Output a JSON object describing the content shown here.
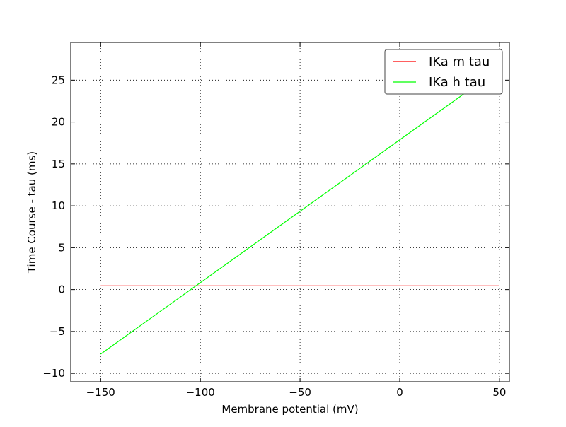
{
  "chart_data": {
    "type": "line",
    "title": "",
    "xlabel": "Membrane potential (mV)",
    "ylabel": "Time Course - tau (ms)",
    "xlim": [
      -165,
      55
    ],
    "ylim": [
      -11,
      29.5
    ],
    "xticks": [
      -150,
      -100,
      -50,
      0,
      50
    ],
    "xtick_labels": [
      "−150",
      "−100",
      "−50",
      "0",
      "50"
    ],
    "yticks": [
      -10,
      -5,
      0,
      5,
      10,
      15,
      20,
      25
    ],
    "ytick_labels": [
      "−10",
      "−5",
      "0",
      "5",
      "10",
      "15",
      "20",
      "25"
    ],
    "grid": true,
    "legend_position": "top-right",
    "series": [
      {
        "name": "IKa m tau",
        "color": "#ff0000",
        "x": [
          -150,
          50
        ],
        "y": [
          0.45,
          0.45
        ]
      },
      {
        "name": "IKa h tau",
        "color": "#00ff00",
        "x": [
          -150,
          50
        ],
        "y": [
          -7.7,
          26.4
        ]
      }
    ]
  }
}
